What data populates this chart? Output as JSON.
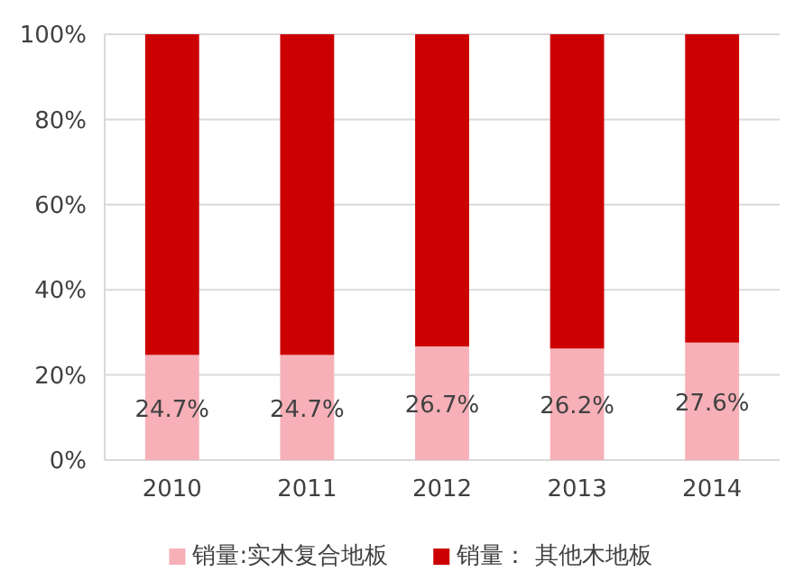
{
  "chart_data": {
    "type": "bar",
    "stacked": true,
    "categories": [
      "2010",
      "2011",
      "2012",
      "2013",
      "2014"
    ],
    "series": [
      {
        "name": "销量:实木复合地板",
        "color": "#f7b0b8",
        "values": [
          24.7,
          24.7,
          26.7,
          26.2,
          27.6
        ],
        "value_labels": [
          "24.7%",
          "24.7%",
          "26.7%",
          "26.2%",
          "27.6%"
        ]
      },
      {
        "name": "销量： 其他木地板",
        "color": "#cc0000",
        "values": [
          75.3,
          75.3,
          73.3,
          73.8,
          72.4
        ]
      }
    ],
    "ylim": [
      0,
      100
    ],
    "yticks": [
      {
        "value": 0,
        "label": "0%"
      },
      {
        "value": 20,
        "label": "20%"
      },
      {
        "value": 40,
        "label": "40%"
      },
      {
        "value": 60,
        "label": "60%"
      },
      {
        "value": 80,
        "label": "80%"
      },
      {
        "value": 100,
        "label": "100%"
      }
    ],
    "grid": "y",
    "legend": "bottom"
  }
}
